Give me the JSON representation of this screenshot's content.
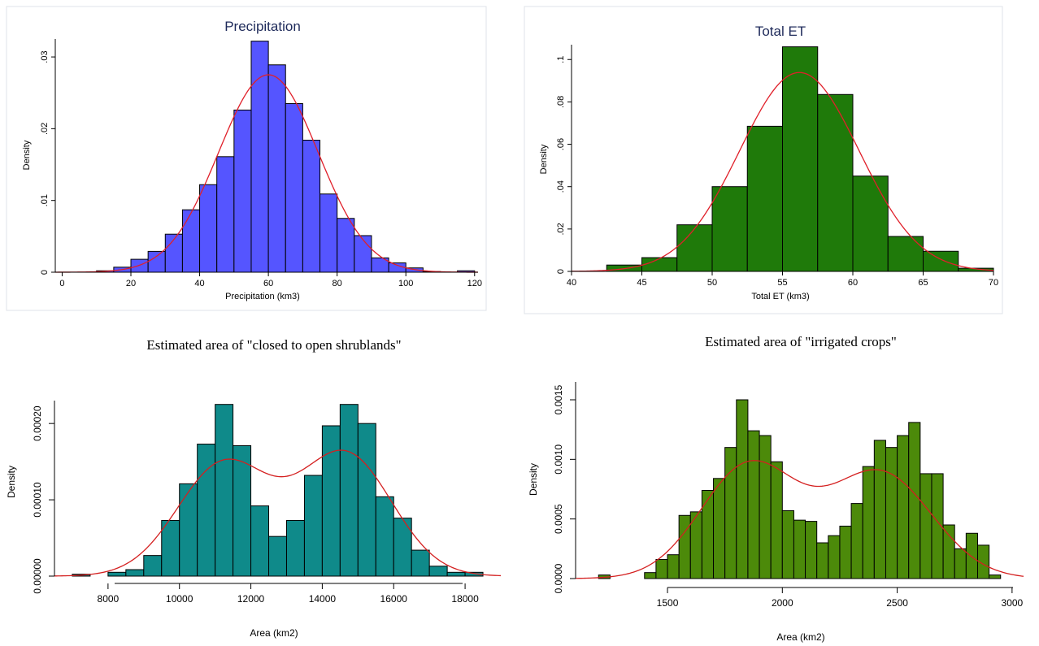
{
  "charts": [
    {
      "style": "stata",
      "title": "Precipitation",
      "xlabel": "Precipitation (km3)",
      "ylabel": "Density",
      "xticks": [
        "0",
        "20",
        "40",
        "60",
        "80",
        "100",
        "120"
      ],
      "yticks": [
        "0",
        ".01",
        ".02",
        ".03"
      ]
    },
    {
      "style": "stata",
      "title": "Total ET",
      "xlabel": "Total ET (km3)",
      "ylabel": "Density",
      "xticks": [
        "40",
        "45",
        "50",
        "55",
        "60",
        "65",
        "70"
      ],
      "yticks": [
        "0",
        ".02",
        ".04",
        ".06",
        ".08",
        ".1"
      ]
    },
    {
      "style": "r",
      "title": "Estimated area of \"closed to open shrublands\"",
      "xlabel": "Area (km2)",
      "ylabel": "Density",
      "xticks": [
        "8000",
        "10000",
        "12000",
        "14000",
        "16000",
        "18000"
      ],
      "yticks": [
        "0.00000",
        "0.00010",
        "0.00020"
      ]
    },
    {
      "style": "r",
      "title": "Estimated area of \"irrigated crops\"",
      "xlabel": "Area (km2)",
      "ylabel": "Density",
      "xticks": [
        "1500",
        "2000",
        "2500",
        "3000"
      ],
      "yticks": [
        "0.0000",
        "0.0005",
        "0.0010",
        "0.0015"
      ]
    }
  ],
  "chart_data": [
    {
      "type": "bar",
      "subtype": "histogram",
      "title": "Precipitation",
      "xlabel": "Precipitation (km3)",
      "ylabel": "Density",
      "xlim": [
        -2,
        121
      ],
      "ylim": [
        0,
        0.0325
      ],
      "bar_color": "#5555ff",
      "curve_color": "#e0202a",
      "bin_edges": [
        10,
        15,
        20,
        25,
        30,
        35,
        40,
        45,
        50,
        55,
        60,
        65,
        70,
        75,
        80,
        85,
        90,
        95,
        100,
        105,
        110,
        115,
        120
      ],
      "values": [
        0.0002,
        0.0007,
        0.0018,
        0.0029,
        0.0053,
        0.0087,
        0.0122,
        0.0161,
        0.0226,
        0.0322,
        0.0289,
        0.0235,
        0.0184,
        0.0109,
        0.0075,
        0.0051,
        0.002,
        0.0013,
        0.0006,
        0.0001,
        0,
        0.0002
      ],
      "curve": {
        "type": "normal",
        "mean": 60,
        "sd": 14.5
      }
    },
    {
      "type": "bar",
      "subtype": "histogram",
      "title": "Total ET",
      "xlabel": "Total ET (km3)",
      "ylabel": "Density",
      "xlim": [
        40,
        70
      ],
      "ylim": [
        0,
        0.107
      ],
      "bar_color": "#1f7a0a",
      "curve_color": "#e0202a",
      "bin_edges": [
        42.5,
        45,
        47.5,
        50,
        52.5,
        55,
        57.5,
        60,
        62.5,
        65,
        67.5,
        70
      ],
      "values": [
        0.003,
        0.0065,
        0.022,
        0.04,
        0.0685,
        0.106,
        0.0835,
        0.045,
        0.0165,
        0.0095,
        0.0015
      ],
      "curve": {
        "type": "normal",
        "mean": 56.2,
        "sd": 4.25
      }
    },
    {
      "type": "bar",
      "subtype": "histogram",
      "title": "Estimated area of \"closed to open shrublands\"",
      "xlabel": "Area (km2)",
      "ylabel": "Density",
      "xlim": [
        6500,
        19000
      ],
      "ylim": [
        0,
        0.00023
      ],
      "bar_color": "#0f8a8a",
      "curve_color": "#d42020",
      "bin_edges": [
        7000,
        7500,
        8000,
        8500,
        9000,
        9500,
        10000,
        10500,
        11000,
        11500,
        12000,
        12500,
        13000,
        13500,
        14000,
        14500,
        15000,
        15500,
        16000,
        16500,
        17000,
        17500,
        18000,
        18500
      ],
      "values": [
        2.5e-06,
        0,
        5e-06,
        8.5e-06,
        2.7e-05,
        7.3e-05,
        0.000121,
        0.000173,
        0.000225,
        0.000171,
        9.2e-05,
        5.2e-05,
        7.3e-05,
        0.000132,
        0.000197,
        0.000225,
        0.0002,
        0.000104,
        7.6e-05,
        3.4e-05,
        1.3e-05,
        5e-06,
        5e-06
      ],
      "curve": {
        "type": "mixture",
        "components": [
          {
            "weight": 0.48,
            "mean": 11250,
            "sd": 1300
          },
          {
            "weight": 0.52,
            "mean": 14650,
            "sd": 1300
          }
        ]
      }
    },
    {
      "type": "bar",
      "subtype": "histogram",
      "title": "Estimated area of \"irrigated crops\"",
      "xlabel": "Area (km2)",
      "ylabel": "Density",
      "xlim": [
        1100,
        3050
      ],
      "ylim": [
        0,
        0.00165
      ],
      "bar_color": "#4c8a0a",
      "curve_color": "#d42020",
      "bin_edges": [
        1200,
        1250,
        1300,
        1350,
        1400,
        1450,
        1500,
        1550,
        1600,
        1650,
        1700,
        1750,
        1800,
        1850,
        1900,
        1950,
        2000,
        2050,
        2100,
        2150,
        2200,
        2250,
        2300,
        2350,
        2400,
        2450,
        2500,
        2550,
        2600,
        2650,
        2700,
        2750,
        2800,
        2850,
        2900,
        2950
      ],
      "values": [
        3e-05,
        0,
        0,
        0,
        5e-05,
        0.00016,
        0.0002,
        0.00053,
        0.00056,
        0.00074,
        0.00084,
        0.0011,
        0.0015,
        0.00124,
        0.0012,
        0.00098,
        0.00057,
        0.00049,
        0.00048,
        0.0003,
        0.00036,
        0.00044,
        0.00063,
        0.00094,
        0.00116,
        0.0011,
        0.0012,
        0.00131,
        0.00088,
        0.00088,
        0.00045,
        0.00025,
        0.00038,
        0.00028,
        3e-05,
        4e-05
      ],
      "curve": {
        "type": "mixture",
        "components": [
          {
            "weight": 0.5,
            "mean": 1855,
            "sd": 210
          },
          {
            "weight": 0.5,
            "mean": 2425,
            "sd": 225
          }
        ]
      }
    }
  ]
}
